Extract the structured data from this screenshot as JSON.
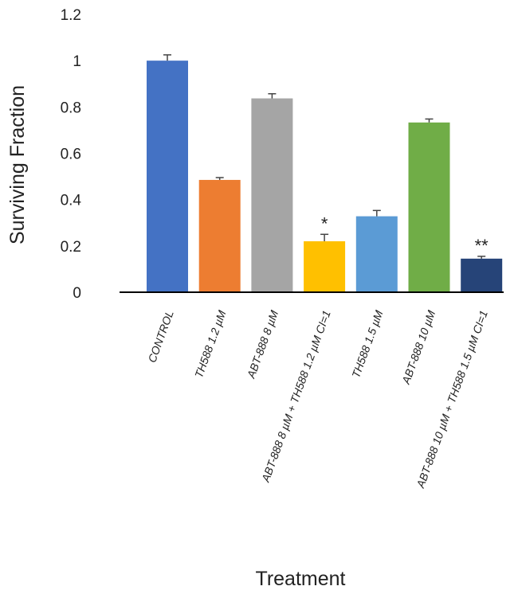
{
  "chart_data": {
    "type": "bar",
    "title": "",
    "xlabel": "Treatment",
    "ylabel": "Surviving Fraction",
    "ylim": [
      0,
      1.2
    ],
    "yticks": [
      "0",
      "0.2",
      "0.4",
      "0.6",
      "0.8",
      "1",
      "1.2"
    ],
    "grid": false,
    "legend": "none",
    "categories": [
      "CONTROL",
      "TH588 1.2 µM",
      "ABT-888 8 µM",
      "ABT-888 8 µM + TH588 1.2 µM CI=1",
      "TH588 1.5 µM",
      "ABT-888 10 µM",
      "ABT-888 10 µM + TH588 1.5 µM CI=1"
    ],
    "values": [
      1.0,
      0.485,
      0.837,
      0.22,
      0.328,
      0.733,
      0.145
    ],
    "errors": [
      0.025,
      0.01,
      0.02,
      0.03,
      0.025,
      0.015,
      0.01
    ],
    "significance": [
      "",
      "",
      "",
      "*",
      "",
      "",
      "**"
    ],
    "colors": [
      "#4472C4",
      "#ED7D31",
      "#A5A5A5",
      "#FFC000",
      "#5B9BD5",
      "#70AD47",
      "#264478"
    ]
  }
}
